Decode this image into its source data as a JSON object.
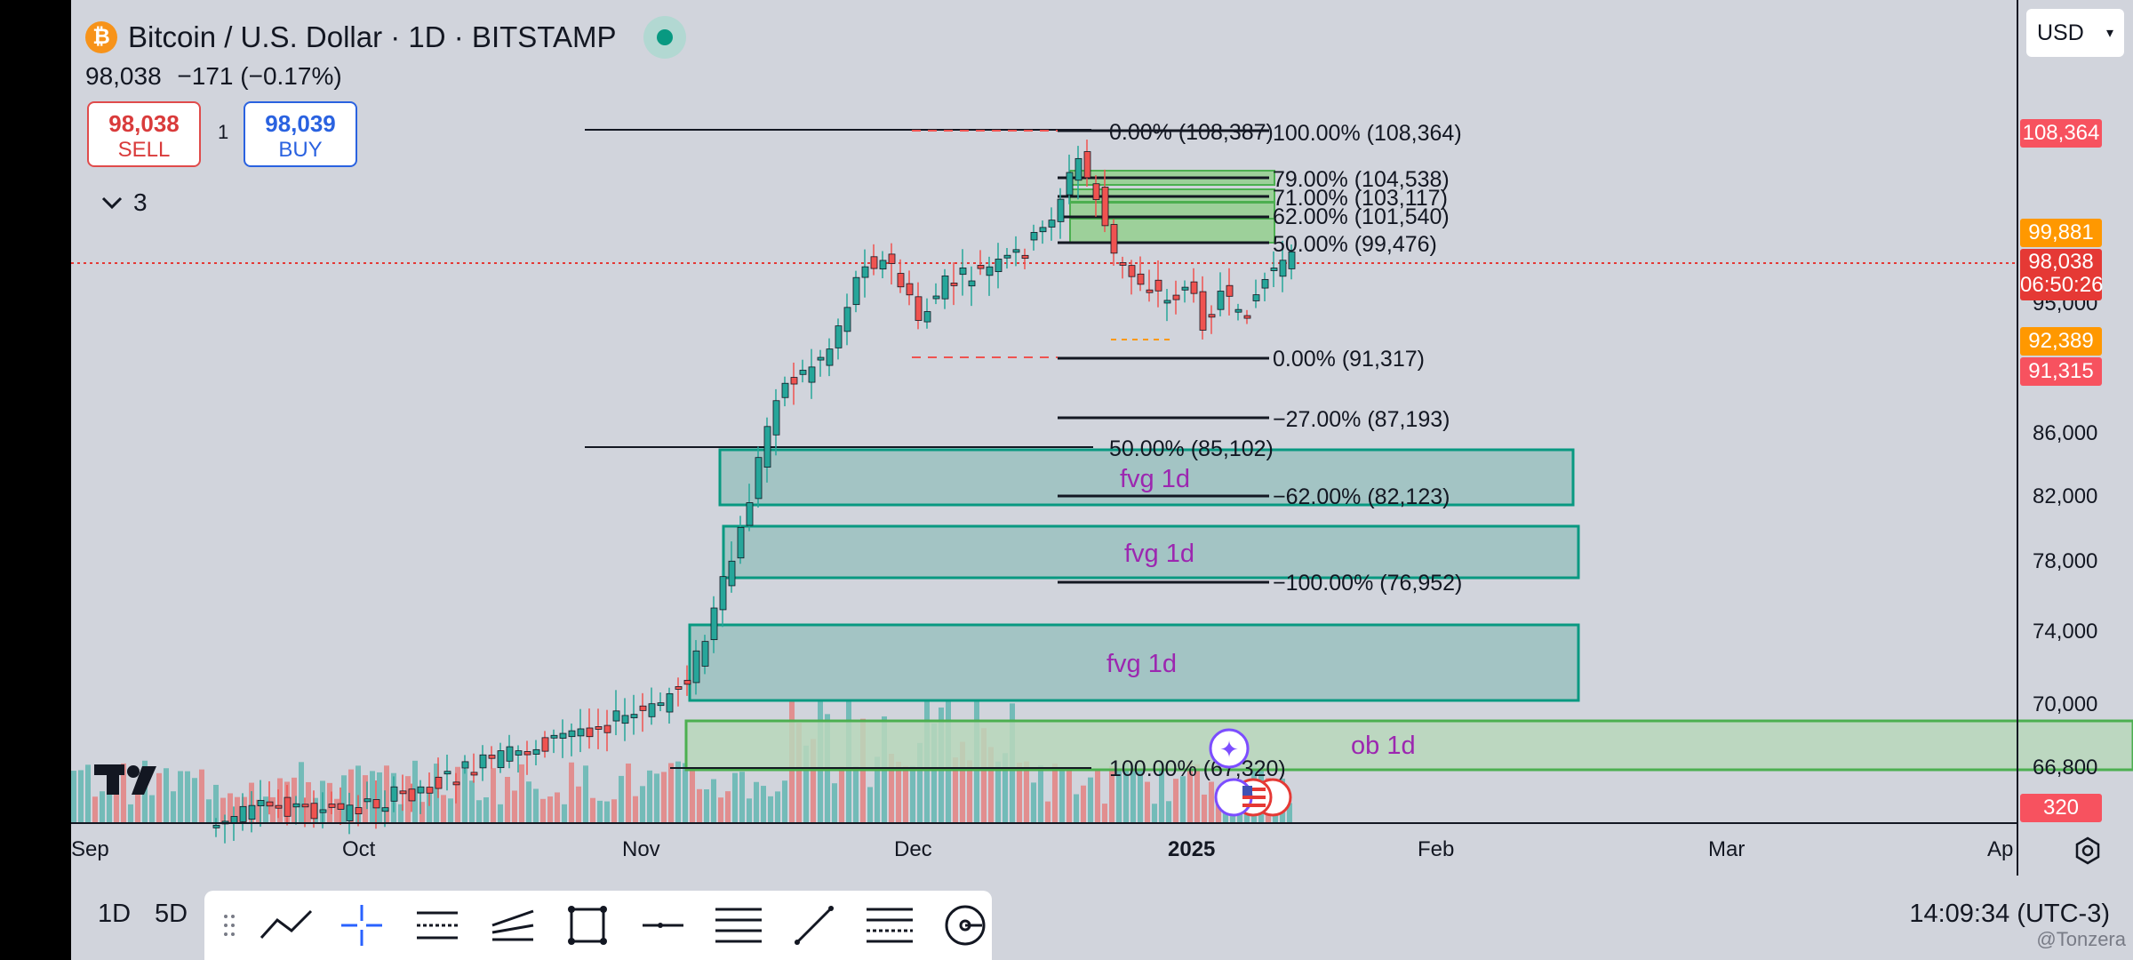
{
  "header": {
    "symbol_title": "Bitcoin / U.S. Dollar · 1D · BITSTAMP",
    "last_price": "98,038",
    "change": "−171 (−0.17%)"
  },
  "trade": {
    "sell_price": "98,038",
    "sell_label": "SELL",
    "spread": "1",
    "buy_price": "98,039",
    "buy_label": "BUY"
  },
  "indicators": {
    "count": "3"
  },
  "currency": "USD",
  "price_axis": {
    "ticks": [
      "86,000",
      "82,000",
      "78,000",
      "74,000",
      "70,000",
      "66,800"
    ],
    "badges": {
      "fib_top": "108,364",
      "orange_high": "99,881",
      "last_price": "98,038",
      "countdown": "06:50:26",
      "orange_low": "92,389",
      "fib_low": "91,315",
      "volume": "320"
    },
    "hidden_tick": "95,000"
  },
  "time_axis": [
    "Sep",
    "Oct",
    "Nov",
    "Dec",
    "2025",
    "Feb",
    "Mar",
    "Ap"
  ],
  "fib_labels": {
    "a_zero": "0.00% (108,387)",
    "a_fifty": "50.00% (85,102)",
    "a_hundred": "100.00% (67,320)",
    "b_100": "100.00% (108,364)",
    "b_79": "79.00% (104,538)",
    "b_71": "71.00% (103,117)",
    "b_62": "62.00% (101,540)",
    "b_50": "50.00% (99,476)",
    "b_0": "0.00% (91,317)",
    "b_m27": "−27.00% (87,193)",
    "b_m62": "−62.00% (82,123)",
    "b_m100": "−100.00% (76,952)"
  },
  "zones": {
    "fvg1": "fvg 1d",
    "fvg2": "fvg 1d",
    "fvg3": "fvg 1d",
    "ob": "ob 1d"
  },
  "bottom": {
    "tf_1d": "1D",
    "tf_5d": "5D",
    "clock": "14:09:34 (UTC-3)",
    "watermark": "@Tonzera"
  },
  "colors": {
    "up": "#26a69a",
    "down": "#ef5350",
    "zone_fill": "#a3c4c4",
    "zone_border": "#089981",
    "ob_fill": "#b9d7bb",
    "ob_border": "#4caf50",
    "zone_text": "#9c27b0"
  },
  "chart_data": {
    "type": "candlestick",
    "x": [
      "Sep",
      "Oct",
      "Nov",
      "Dec",
      "2025",
      "Feb",
      "Mar",
      "Ap"
    ],
    "price_levels": [
      108364,
      99881,
      98038,
      92389,
      91315,
      86000,
      82000,
      78000,
      74000,
      70000,
      66800
    ]
  }
}
